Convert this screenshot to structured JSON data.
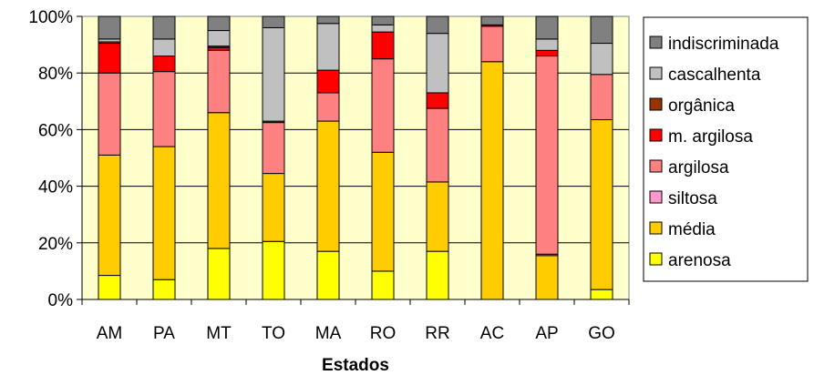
{
  "chart_data": {
    "type": "bar",
    "stacked": true,
    "percent": true,
    "xlabel": "Estados",
    "ylabel": "",
    "ylim": [
      0,
      100
    ],
    "y_ticks": [
      "0%",
      "20%",
      "40%",
      "60%",
      "80%",
      "100%"
    ],
    "y_tick_values": [
      0,
      20,
      40,
      60,
      80,
      100
    ],
    "grid": true,
    "plot_background": "#FFFFCC",
    "legend_position": "right",
    "categories": [
      "AM",
      "PA",
      "MT",
      "TO",
      "MA",
      "RO",
      "RR",
      "AC",
      "AP",
      "GO"
    ],
    "series": [
      {
        "name": "arenosa",
        "color": "#FFFF00",
        "values": [
          8.5,
          7,
          18,
          20.5,
          17,
          10,
          17,
          0,
          0,
          3.5
        ]
      },
      {
        "name": "média",
        "color": "#FFCC00",
        "values": [
          42.5,
          47,
          48,
          24,
          46,
          42,
          24.5,
          84,
          15.5,
          60
        ]
      },
      {
        "name": "siltosa",
        "color": "#FF99CC",
        "values": [
          0,
          0,
          0,
          0,
          0,
          0,
          0,
          0,
          0.5,
          0
        ]
      },
      {
        "name": "argilosa",
        "color": "#FF8080",
        "values": [
          29,
          26.5,
          22,
          18,
          10,
          33,
          26,
          12.5,
          70,
          16
        ]
      },
      {
        "name": "m. argilosa",
        "color": "#FF0000",
        "values": [
          10.5,
          5.5,
          1,
          0,
          8,
          9.5,
          5.5,
          0.5,
          2,
          0
        ]
      },
      {
        "name": "orgânica",
        "color": "#993300",
        "values": [
          0.5,
          0,
          0.5,
          0.5,
          0,
          0,
          0,
          0,
          0,
          0
        ]
      },
      {
        "name": "cascalhenta",
        "color": "#C0C0C0",
        "values": [
          1,
          6,
          5.5,
          33,
          16.5,
          2.5,
          21,
          0,
          4,
          11
        ]
      },
      {
        "name": "indiscriminada",
        "color": "#808080",
        "values": [
          8,
          8,
          5,
          4,
          2.5,
          3,
          6,
          3,
          8,
          9.5
        ]
      }
    ]
  }
}
